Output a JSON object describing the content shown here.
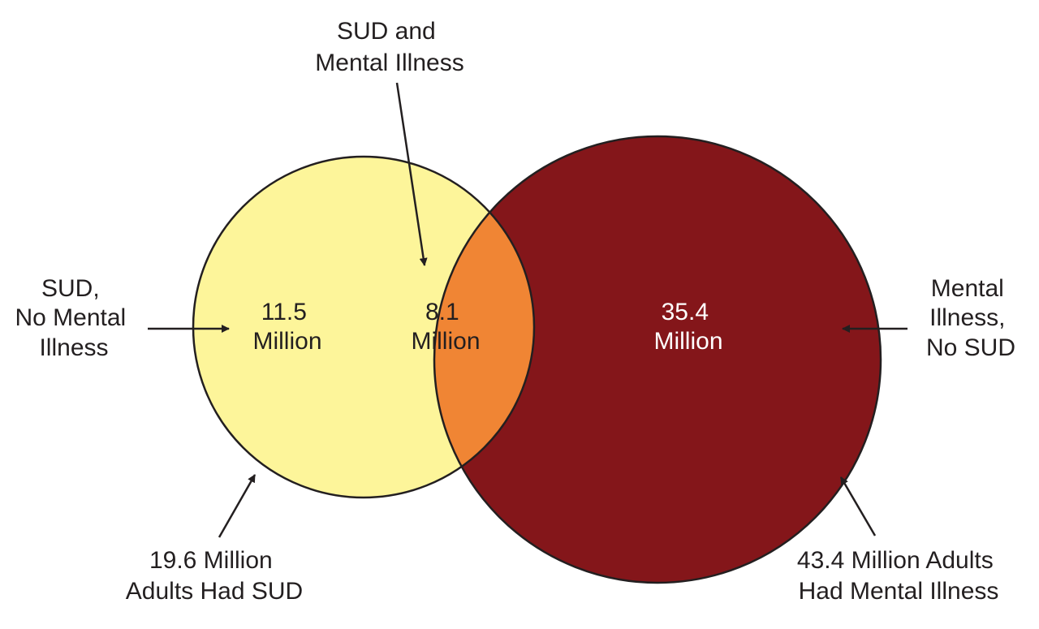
{
  "colors": {
    "sud_only": "#fdf59a",
    "overlap": "#f08534",
    "mental_only": "#84161a",
    "outline": "#231f20",
    "text_dark": "#231f20",
    "text_light": "#ffffff"
  },
  "regions": {
    "sud_only": {
      "line1": "11.5",
      "line2": "Million"
    },
    "overlap": {
      "line1": "8.1",
      "line2": "Million"
    },
    "mental_only": {
      "line1": "35.4",
      "line2": "Million"
    }
  },
  "callouts": {
    "sud_and_mental": {
      "line1": "SUD and",
      "line2": "Mental Illness"
    },
    "sud_no_mental": {
      "line1": "SUD,",
      "line2": "No Mental",
      "line3": "Illness"
    },
    "mental_no_sud": {
      "line1": "Mental",
      "line2": "Illness,",
      "line3": "No SUD"
    },
    "total_sud": {
      "line1": "19.6 Million",
      "line2": "Adults Had SUD"
    },
    "total_mental": {
      "line1": "43.4 Million Adults",
      "line2": "Had Mental Illness"
    }
  }
}
